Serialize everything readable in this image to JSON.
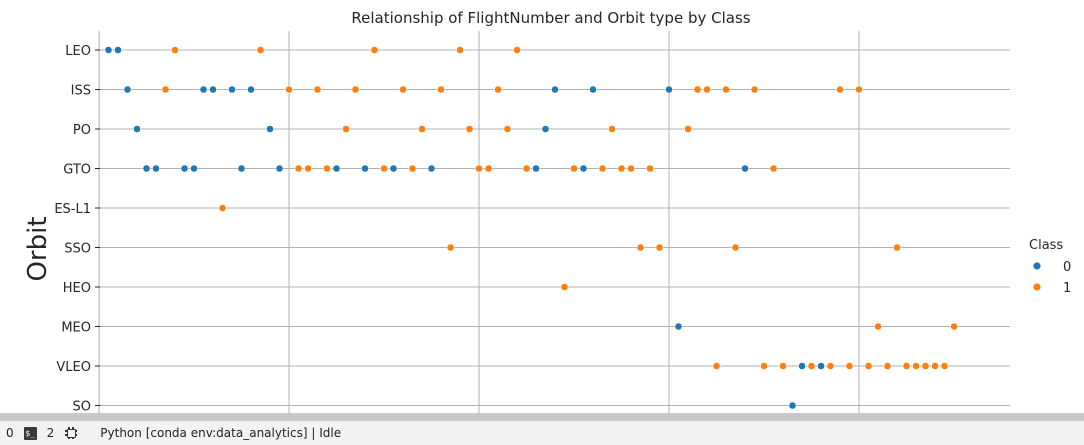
{
  "chart_data": {
    "type": "scatter",
    "title": "Relationship of FlightNumber and Orbit type by Class",
    "ylabel": "Orbit",
    "xlabel": "",
    "y_categories": [
      "LEO",
      "ISS",
      "PO",
      "GTO",
      "ES-L1",
      "SSO",
      "HEO",
      "MEO",
      "VLEO",
      "SO"
    ],
    "xlim": [
      0.1,
      95.9
    ],
    "grid": true,
    "legend": {
      "title": "Class",
      "position": "right",
      "entries": [
        "0",
        "1"
      ]
    },
    "colors": {
      "0": "#1f77b4",
      "1": "#ff7f0e"
    },
    "series": [
      {
        "name": "0",
        "points": [
          {
            "x": 1,
            "y": "LEO"
          },
          {
            "x": 2,
            "y": "LEO"
          },
          {
            "x": 3,
            "y": "ISS"
          },
          {
            "x": 4,
            "y": "PO"
          },
          {
            "x": 5,
            "y": "GTO"
          },
          {
            "x": 6,
            "y": "GTO"
          },
          {
            "x": 9,
            "y": "GTO"
          },
          {
            "x": 10,
            "y": "GTO"
          },
          {
            "x": 11,
            "y": "ISS"
          },
          {
            "x": 12,
            "y": "ISS"
          },
          {
            "x": 14,
            "y": "ISS"
          },
          {
            "x": 15,
            "y": "GTO"
          },
          {
            "x": 16,
            "y": "ISS"
          },
          {
            "x": 18,
            "y": "PO"
          },
          {
            "x": 19,
            "y": "GTO"
          },
          {
            "x": 25,
            "y": "GTO"
          },
          {
            "x": 28,
            "y": "GTO"
          },
          {
            "x": 31,
            "y": "GTO"
          },
          {
            "x": 35,
            "y": "GTO"
          },
          {
            "x": 46,
            "y": "GTO"
          },
          {
            "x": 47,
            "y": "PO"
          },
          {
            "x": 48,
            "y": "ISS"
          },
          {
            "x": 51,
            "y": "GTO"
          },
          {
            "x": 52,
            "y": "ISS"
          },
          {
            "x": 60,
            "y": "ISS"
          },
          {
            "x": 61,
            "y": "MEO"
          },
          {
            "x": 68,
            "y": "GTO"
          },
          {
            "x": 73,
            "y": "SO"
          },
          {
            "x": 74,
            "y": "VLEO"
          },
          {
            "x": 76,
            "y": "VLEO"
          }
        ]
      },
      {
        "name": "1",
        "points": [
          {
            "x": 7,
            "y": "ISS"
          },
          {
            "x": 8,
            "y": "LEO"
          },
          {
            "x": 13,
            "y": "ES-L1"
          },
          {
            "x": 17,
            "y": "LEO"
          },
          {
            "x": 20,
            "y": "ISS"
          },
          {
            "x": 21,
            "y": "GTO"
          },
          {
            "x": 22,
            "y": "GTO"
          },
          {
            "x": 23,
            "y": "ISS"
          },
          {
            "x": 24,
            "y": "GTO"
          },
          {
            "x": 26,
            "y": "PO"
          },
          {
            "x": 27,
            "y": "ISS"
          },
          {
            "x": 29,
            "y": "LEO"
          },
          {
            "x": 30,
            "y": "GTO"
          },
          {
            "x": 32,
            "y": "ISS"
          },
          {
            "x": 33,
            "y": "GTO"
          },
          {
            "x": 34,
            "y": "PO"
          },
          {
            "x": 36,
            "y": "ISS"
          },
          {
            "x": 37,
            "y": "SSO"
          },
          {
            "x": 38,
            "y": "LEO"
          },
          {
            "x": 39,
            "y": "PO"
          },
          {
            "x": 40,
            "y": "GTO"
          },
          {
            "x": 41,
            "y": "GTO"
          },
          {
            "x": 42,
            "y": "ISS"
          },
          {
            "x": 43,
            "y": "PO"
          },
          {
            "x": 44,
            "y": "LEO"
          },
          {
            "x": 45,
            "y": "GTO"
          },
          {
            "x": 49,
            "y": "HEO"
          },
          {
            "x": 50,
            "y": "GTO"
          },
          {
            "x": 53,
            "y": "GTO"
          },
          {
            "x": 54,
            "y": "PO"
          },
          {
            "x": 55,
            "y": "GTO"
          },
          {
            "x": 56,
            "y": "GTO"
          },
          {
            "x": 57,
            "y": "SSO"
          },
          {
            "x": 58,
            "y": "GTO"
          },
          {
            "x": 59,
            "y": "SSO"
          },
          {
            "x": 62,
            "y": "PO"
          },
          {
            "x": 63,
            "y": "ISS"
          },
          {
            "x": 64,
            "y": "ISS"
          },
          {
            "x": 65,
            "y": "VLEO"
          },
          {
            "x": 66,
            "y": "ISS"
          },
          {
            "x": 67,
            "y": "SSO"
          },
          {
            "x": 69,
            "y": "ISS"
          },
          {
            "x": 70,
            "y": "VLEO"
          },
          {
            "x": 71,
            "y": "GTO"
          },
          {
            "x": 72,
            "y": "VLEO"
          },
          {
            "x": 75,
            "y": "VLEO"
          },
          {
            "x": 77,
            "y": "VLEO"
          },
          {
            "x": 78,
            "y": "ISS"
          },
          {
            "x": 79,
            "y": "VLEO"
          },
          {
            "x": 80,
            "y": "ISS"
          },
          {
            "x": 81,
            "y": "VLEO"
          },
          {
            "x": 82,
            "y": "MEO"
          },
          {
            "x": 83,
            "y": "VLEO"
          },
          {
            "x": 84,
            "y": "SSO"
          },
          {
            "x": 85,
            "y": "VLEO"
          },
          {
            "x": 86,
            "y": "VLEO"
          },
          {
            "x": 87,
            "y": "VLEO"
          },
          {
            "x": 88,
            "y": "VLEO"
          },
          {
            "x": 89,
            "y": "VLEO"
          },
          {
            "x": 90,
            "y": "MEO"
          }
        ]
      }
    ]
  },
  "status_bar": {
    "zero_count": "0",
    "terminal_icon_text": "$_",
    "kernel_count": "2",
    "kernel_status": "Python [conda env:data_analytics] | Idle"
  }
}
